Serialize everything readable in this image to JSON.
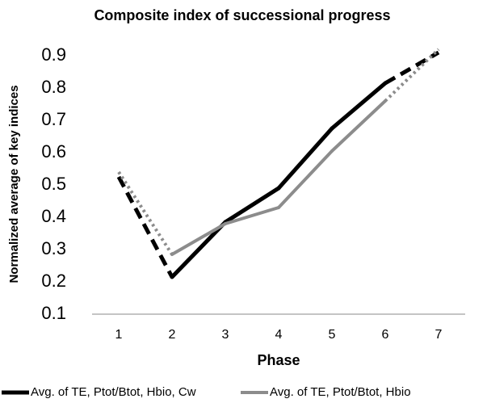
{
  "chart_data": {
    "type": "line",
    "title": "Composite index of successional progress",
    "x_label": "Phase",
    "y_label": "Normalized average of key indices",
    "categories": [
      "1",
      "2",
      "3",
      "4",
      "5",
      "6",
      "7"
    ],
    "series": [
      {
        "name": "Avg. of  TE, Ptot/Btot, Hbio, Cw",
        "color": "#000000",
        "width": 5,
        "dashed_segments": [
          0,
          5
        ],
        "dash_style": "dash",
        "values": [
          0.525,
          0.215,
          0.385,
          0.49,
          0.675,
          0.815,
          0.91
        ]
      },
      {
        "name": "Avg. of  TE, Ptot/Btot, Hbio",
        "color": "#8c8c8c",
        "width": 4,
        "dashed_segments": [
          0,
          5
        ],
        "dash_style": "dot",
        "values": [
          0.54,
          0.285,
          0.38,
          0.43,
          0.605,
          0.76,
          0.92
        ]
      }
    ],
    "ylim": [
      0.1,
      0.9
    ],
    "yticks": [
      0.1,
      0.2,
      0.3,
      0.4,
      0.5,
      0.6,
      0.7,
      0.8,
      0.9
    ],
    "grid": false,
    "legend": "bottom"
  }
}
